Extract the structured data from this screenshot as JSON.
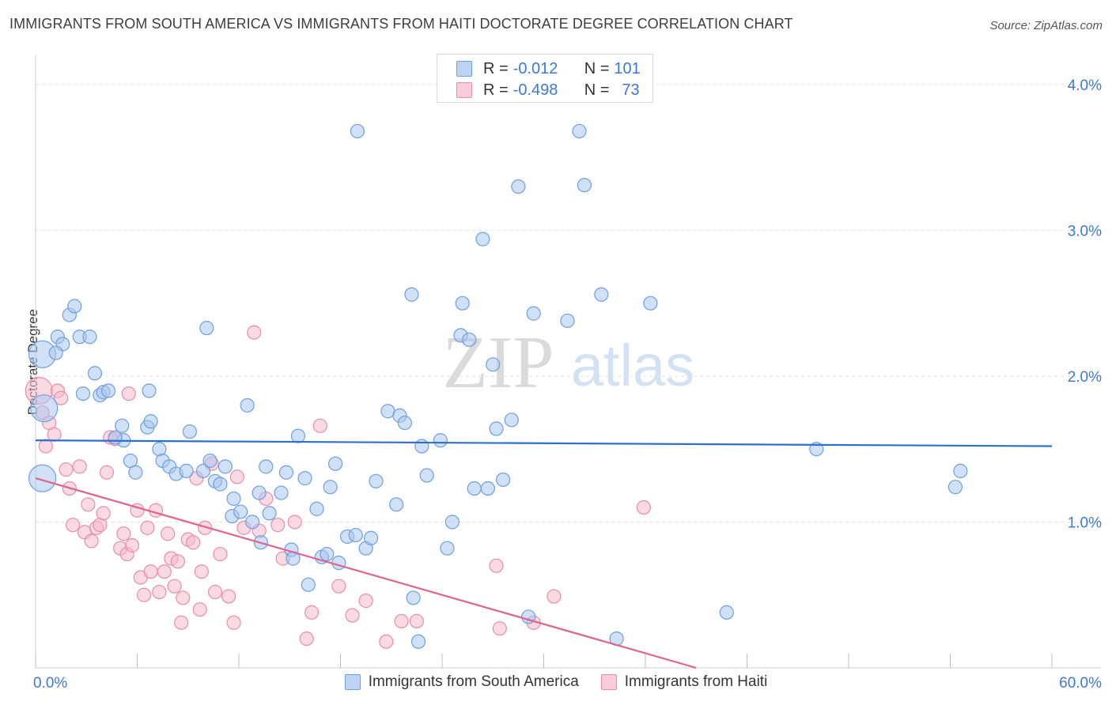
{
  "title": "IMMIGRANTS FROM SOUTH AMERICA VS IMMIGRANTS FROM HAITI DOCTORATE DEGREE CORRELATION CHART",
  "source": "Source: ZipAtlas.com",
  "watermark": {
    "zip": "ZIP",
    "atlas": "atlas"
  },
  "legend": {
    "r_label": "R =",
    "n_label": "N =",
    "rows": [
      {
        "r": "-0.012",
        "n": "101"
      },
      {
        "r": "-0.498",
        "n": "73"
      }
    ]
  },
  "colors": {
    "blue_fill": "#a9c6ee",
    "blue_stroke": "#6f9fde",
    "blue_line": "#2d6fcf",
    "pink_fill": "#f4b9cb",
    "pink_stroke": "#e98dab",
    "pink_line": "#e0628f",
    "axis_label": "#3b78d8"
  },
  "chart_data": {
    "type": "scatter",
    "title": "IMMIGRANTS FROM SOUTH AMERICA VS IMMIGRANTS FROM HAITI DOCTORATE DEGREE CORRELATION CHART",
    "xlabel": "",
    "ylabel": "Doctorate Degree",
    "xlim": [
      0,
      60
    ],
    "ylim": [
      0,
      4.2
    ],
    "x_tick_labels": [
      "0.0%",
      "60.0%"
    ],
    "y_ticks": [
      1,
      2,
      3,
      4
    ],
    "y_tick_labels": [
      "1.0%",
      "2.0%",
      "3.0%",
      "4.0%"
    ],
    "grid": "horizontal dashed",
    "legend_position": "top-center",
    "series": [
      {
        "name": "Immigrants from South America",
        "trend": {
          "x": [
            0,
            60
          ],
          "y": [
            1.56,
            1.52
          ]
        },
        "points": [
          [
            0.4,
            2.15,
            1
          ],
          [
            0.5,
            1.78,
            1
          ],
          [
            0.4,
            1.3,
            1
          ],
          [
            1.3,
            2.27,
            0
          ],
          [
            1.6,
            2.22,
            0
          ],
          [
            1.2,
            2.16,
            0
          ],
          [
            2.0,
            2.42,
            0
          ],
          [
            2.3,
            2.48,
            0
          ],
          [
            2.6,
            2.27,
            0
          ],
          [
            3.2,
            2.27,
            0
          ],
          [
            3.5,
            2.02,
            0
          ],
          [
            2.8,
            1.88,
            0
          ],
          [
            3.8,
            1.87,
            0
          ],
          [
            4.0,
            1.89,
            0
          ],
          [
            4.3,
            1.9,
            0
          ],
          [
            5.1,
            1.66,
            0
          ],
          [
            5.2,
            1.56,
            0
          ],
          [
            4.7,
            1.58,
            0
          ],
          [
            6.6,
            1.65,
            0
          ],
          [
            6.8,
            1.69,
            0
          ],
          [
            6.7,
            1.9,
            0
          ],
          [
            5.6,
            1.42,
            0
          ],
          [
            5.9,
            1.34,
            0
          ],
          [
            7.3,
            1.5,
            0
          ],
          [
            7.5,
            1.42,
            0
          ],
          [
            7.9,
            1.38,
            0
          ],
          [
            8.3,
            1.33,
            0
          ],
          [
            8.9,
            1.35,
            0
          ],
          [
            9.1,
            1.62,
            0
          ],
          [
            9.9,
            1.35,
            0
          ],
          [
            10.1,
            2.33,
            0
          ],
          [
            10.3,
            1.42,
            0
          ],
          [
            10.6,
            1.28,
            0
          ],
          [
            10.9,
            1.26,
            0
          ],
          [
            11.2,
            1.38,
            0
          ],
          [
            11.6,
            1.04,
            0
          ],
          [
            11.7,
            1.16,
            0
          ],
          [
            12.1,
            1.07,
            0
          ],
          [
            12.5,
            1.8,
            0
          ],
          [
            12.8,
            1.0,
            0
          ],
          [
            13.2,
            1.2,
            0
          ],
          [
            13.6,
            1.38,
            0
          ],
          [
            13.8,
            1.06,
            0
          ],
          [
            13.3,
            0.86,
            0
          ],
          [
            14.5,
            1.2,
            0
          ],
          [
            14.8,
            1.34,
            0
          ],
          [
            15.1,
            0.81,
            0
          ],
          [
            15.2,
            0.75,
            0
          ],
          [
            15.5,
            1.59,
            0
          ],
          [
            15.9,
            1.3,
            0
          ],
          [
            16.1,
            0.57,
            0
          ],
          [
            16.6,
            1.09,
            0
          ],
          [
            16.9,
            0.76,
            0
          ],
          [
            17.2,
            0.78,
            0
          ],
          [
            17.4,
            1.24,
            0
          ],
          [
            17.7,
            1.4,
            0
          ],
          [
            17.9,
            0.72,
            0
          ],
          [
            18.4,
            0.9,
            0
          ],
          [
            18.9,
            0.91,
            0
          ],
          [
            19.0,
            3.68,
            0
          ],
          [
            19.5,
            0.82,
            0
          ],
          [
            19.8,
            0.89,
            0
          ],
          [
            20.1,
            1.28,
            0
          ],
          [
            20.8,
            1.76,
            0
          ],
          [
            21.3,
            1.12,
            0
          ],
          [
            21.5,
            1.73,
            0
          ],
          [
            21.8,
            1.68,
            0
          ],
          [
            22.3,
            0.48,
            0
          ],
          [
            22.6,
            0.18,
            0
          ],
          [
            22.2,
            2.56,
            0
          ],
          [
            22.8,
            1.52,
            0
          ],
          [
            23.1,
            1.32,
            0
          ],
          [
            23.9,
            1.56,
            0
          ],
          [
            24.3,
            0.82,
            0
          ],
          [
            24.6,
            1.0,
            0
          ],
          [
            25.1,
            2.28,
            0
          ],
          [
            25.2,
            2.5,
            0
          ],
          [
            25.6,
            2.25,
            0
          ],
          [
            25.9,
            1.23,
            0
          ],
          [
            26.4,
            2.94,
            0
          ],
          [
            26.7,
            1.23,
            0
          ],
          [
            27.0,
            2.08,
            0
          ],
          [
            27.2,
            1.64,
            0
          ],
          [
            27.6,
            1.29,
            0
          ],
          [
            28.1,
            1.7,
            0
          ],
          [
            28.5,
            3.3,
            0
          ],
          [
            29.1,
            0.35,
            0
          ],
          [
            29.4,
            2.43,
            0
          ],
          [
            31.4,
            2.38,
            0
          ],
          [
            32.1,
            3.68,
            0
          ],
          [
            32.4,
            3.31,
            0
          ],
          [
            33.4,
            2.56,
            0
          ],
          [
            34.3,
            0.2,
            0
          ],
          [
            36.3,
            2.5,
            0
          ],
          [
            40.8,
            0.38,
            0
          ],
          [
            46.1,
            1.5,
            0
          ],
          [
            54.3,
            1.24,
            0
          ],
          [
            54.6,
            1.35,
            0
          ]
        ]
      },
      {
        "name": "Immigrants from Haiti",
        "trend": {
          "x": [
            0,
            39
          ],
          "y": [
            1.3,
            0.0
          ]
        },
        "points": [
          [
            0.2,
            1.9,
            1
          ],
          [
            0.4,
            1.75,
            0
          ],
          [
            0.6,
            1.52,
            0
          ],
          [
            0.8,
            1.68,
            0
          ],
          [
            1.1,
            1.6,
            0
          ],
          [
            1.3,
            1.9,
            0
          ],
          [
            1.5,
            1.85,
            0
          ],
          [
            1.8,
            1.36,
            0
          ],
          [
            2.0,
            1.23,
            0
          ],
          [
            2.2,
            0.98,
            0
          ],
          [
            2.6,
            1.38,
            0
          ],
          [
            2.9,
            0.93,
            0
          ],
          [
            3.1,
            1.12,
            0
          ],
          [
            3.3,
            0.87,
            0
          ],
          [
            3.6,
            0.96,
            0
          ],
          [
            3.8,
            0.98,
            0
          ],
          [
            4.0,
            1.06,
            0
          ],
          [
            4.2,
            1.34,
            0
          ],
          [
            4.4,
            1.58,
            0
          ],
          [
            4.7,
            1.57,
            0
          ],
          [
            5.0,
            0.82,
            0
          ],
          [
            5.2,
            0.92,
            0
          ],
          [
            5.4,
            0.78,
            0
          ],
          [
            5.5,
            1.88,
            0
          ],
          [
            5.7,
            0.84,
            0
          ],
          [
            6.0,
            1.08,
            0
          ],
          [
            6.2,
            0.62,
            0
          ],
          [
            6.4,
            0.5,
            0
          ],
          [
            6.6,
            0.96,
            0
          ],
          [
            6.8,
            0.66,
            0
          ],
          [
            7.1,
            1.08,
            0
          ],
          [
            7.3,
            0.52,
            0
          ],
          [
            7.6,
            0.66,
            0
          ],
          [
            7.8,
            0.92,
            0
          ],
          [
            8.0,
            0.75,
            0
          ],
          [
            8.2,
            0.56,
            0
          ],
          [
            8.4,
            0.73,
            0
          ],
          [
            8.6,
            0.31,
            0
          ],
          [
            8.7,
            0.48,
            0
          ],
          [
            9.0,
            0.88,
            0
          ],
          [
            9.3,
            0.86,
            0
          ],
          [
            9.5,
            1.3,
            0
          ],
          [
            9.7,
            0.4,
            0
          ],
          [
            9.8,
            0.66,
            0
          ],
          [
            10.0,
            0.96,
            0
          ],
          [
            10.4,
            1.4,
            0
          ],
          [
            10.6,
            0.52,
            0
          ],
          [
            10.9,
            0.78,
            0
          ],
          [
            11.4,
            0.49,
            0
          ],
          [
            11.7,
            0.31,
            0
          ],
          [
            11.9,
            1.31,
            0
          ],
          [
            12.3,
            0.96,
            0
          ],
          [
            12.9,
            2.3,
            0
          ],
          [
            13.2,
            0.94,
            0
          ],
          [
            13.6,
            1.16,
            0
          ],
          [
            14.3,
            0.98,
            0
          ],
          [
            14.6,
            0.75,
            0
          ],
          [
            15.3,
            1.0,
            0
          ],
          [
            16.0,
            0.2,
            0
          ],
          [
            16.3,
            0.38,
            0
          ],
          [
            16.8,
            1.66,
            0
          ],
          [
            17.9,
            0.56,
            0
          ],
          [
            18.7,
            0.36,
            0
          ],
          [
            19.5,
            0.46,
            0
          ],
          [
            20.7,
            0.18,
            0
          ],
          [
            21.6,
            0.32,
            0
          ],
          [
            22.5,
            0.32,
            0
          ],
          [
            27.2,
            0.7,
            0
          ],
          [
            27.4,
            0.27,
            0
          ],
          [
            29.4,
            0.31,
            0
          ],
          [
            30.6,
            0.49,
            0
          ],
          [
            35.9,
            1.1,
            0
          ]
        ]
      }
    ]
  }
}
